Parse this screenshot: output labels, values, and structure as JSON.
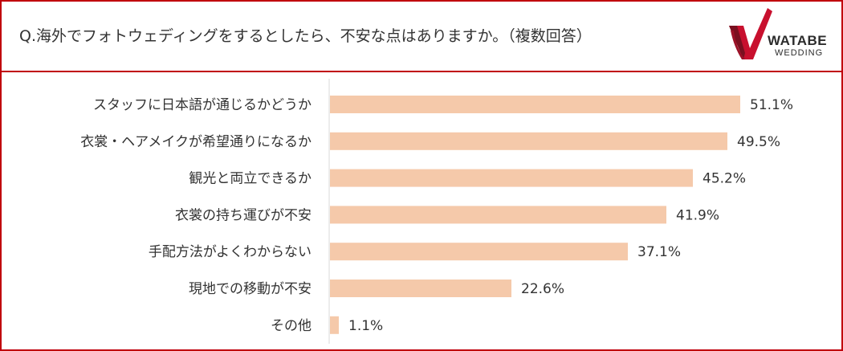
{
  "header": {
    "question": "Q.海外でフォトウェディングをするとしたら、不安な点はありますか。（複数回答）"
  },
  "logo": {
    "wordmark": "WATABE",
    "subtext": "WEDDING",
    "icon": "checkmark-logo-icon"
  },
  "colors": {
    "frame": "#c0000b",
    "bar": "#f5c9aa",
    "axis": "#d9d9d9",
    "logo_red": "#c8102e",
    "logo_dark": "#7a1020"
  },
  "chart_data": {
    "type": "bar",
    "orientation": "horizontal",
    "categories": [
      "スタッフに日本語が通じるかどうか",
      "衣裳・ヘアメイクが希望通りになるか",
      "観光と両立できるか",
      "衣裳の持ち運びが不安",
      "手配方法がよくわからない",
      "現地での移動が不安",
      "その他"
    ],
    "values": [
      51.1,
      49.5,
      45.2,
      41.9,
      37.1,
      22.6,
      1.1
    ],
    "value_labels": [
      "51.1%",
      "49.5%",
      "45.2%",
      "41.9%",
      "37.1%",
      "22.6%",
      "1.1%"
    ],
    "unit": "%",
    "xlim": [
      0,
      55
    ],
    "grid": false,
    "legend": "none"
  }
}
